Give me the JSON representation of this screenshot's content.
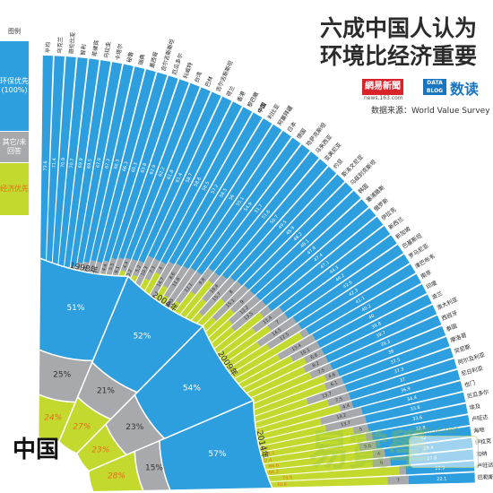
{
  "title_line1": "六成中国人认为",
  "title_line2": "环境比经济重要",
  "brand": {
    "netease": "網易新聞",
    "netease_sub": "news.163.com",
    "datablog": "DATA BLOG",
    "read": "数读"
  },
  "source": "数据来源：World Value Survey",
  "legend": {
    "header": "图例",
    "env": "环保优先(100%)",
    "other": "其它/未回答",
    "econ": "经济优先"
  },
  "colors": {
    "env": "#2d9ede",
    "other": "#a7a9ac",
    "econ": "#c4d92e",
    "econ_text": "#e36f1e",
    "ink": "#2b2b2b"
  },
  "china_label": "中国",
  "watermark": {
    "text": "易賞學",
    "url": "jiaoxue.net"
  },
  "chart_data": [
    {
      "type": "bar",
      "orientation": "radial fan, stacked percentage",
      "stack_order": [
        "环保优先",
        "其它/未回答",
        "经济优先"
      ],
      "categories": [
        "平均",
        "乌克兰",
        "哥伦比亚",
        "智利",
        "菲律宾",
        "乌拉圭",
        "卡塔尔",
        "秘鲁",
        "瑞典",
        "墨西哥",
        "吉尔吉斯斯坦",
        "厄瓜多尔",
        "科威特",
        "台湾",
        "巴林",
        "吉尔吉斯斯坦",
        "荷兰",
        "香港",
        "黎巴嫩",
        "中国",
        "利比亚",
        "阿塞拜疆",
        "日本",
        "德国",
        "哈萨克斯坦",
        "马来西亚",
        "亚美尼亚",
        "约旦",
        "斯洛文尼亚",
        "乌兹别克斯坦",
        "韩国",
        "塞浦路斯",
        "俄罗斯",
        "伊拉克",
        "新西兰",
        "新加坡",
        "巴基斯坦",
        "罗马尼亚",
        "津巴布韦",
        "南非",
        "印度",
        "波兰",
        "澳大利亚",
        "西班牙",
        "泰国",
        "摩洛哥",
        "突尼斯",
        "阿尔及利亚",
        "尼日利亚",
        "也门",
        "厄瓜多尔",
        "埃及",
        "卢旺达",
        "海地",
        "伊拉克",
        "加纳",
        "卢旺达",
        "巴勒斯坦"
      ],
      "values_env": [
        73.6,
        71.4,
        70.9,
        70.7,
        69.9,
        69.5,
        67.9,
        67.3,
        66.3,
        66.3,
        65.3,
        63.8,
        62.9,
        62.2,
        61.8,
        61.4,
        58.7,
        58.6,
        58.5,
        57.2,
        56.5,
        56.0,
        55.1,
        54.9,
        51.7,
        51.6,
        50.7,
        49.5,
        48.9,
        48.2,
        48.1,
        47.8,
        47.4,
        47.1,
        44.3,
        44.2,
        42.6,
        42.3,
        41.1,
        40.2,
        40.0,
        39.8,
        39.7,
        39.3,
        38.0,
        37.5,
        37.3,
        37.0,
        36.9,
        34.4,
        33.8,
        33.6,
        32.8,
        32.0,
        29.4,
        27.8,
        22.9,
        22.1
      ],
      "values_other": [
        5.0,
        4.4,
        2.1,
        5.7,
        3.6,
        2.5,
        9.5,
        5.1,
        18.1,
        8.0,
        4.4,
        5.5,
        8.1,
        4.4,
        10.2,
        5.2,
        10.3,
        7.3,
        4.0,
        14.7,
        8.6,
        11.6,
        27.5,
        12.1,
        9.8,
        3.4,
        10.4,
        15.7,
        8.0,
        15.1,
        9.0,
        12.2,
        13.5,
        3.4,
        11.4,
        7.0,
        14.5,
        12.5,
        2.4,
        13.4,
        10.1,
        6.6,
        8.2,
        7.5,
        4.6,
        6.1,
        13.7,
        7.5,
        4.4,
        14.2,
        13.7,
        5.0,
        2.1,
        5.6,
        4.0,
        6.0,
        2.2,
        7.0
      ],
      "values_econ": [
        21.4,
        24.2,
        27.0,
        23.6,
        26.5,
        28.0,
        22.6,
        27.6,
        15.6,
        25.7,
        30.3,
        30.7,
        29.0,
        33.4,
        28.0,
        33.4,
        31.0,
        34.1,
        37.5,
        28.1,
        34.9,
        32.4,
        17.4,
        33.0,
        38.5,
        45.0,
        38.9,
        34.8,
        43.1,
        36.7,
        42.9,
        40.0,
        39.1,
        49.5,
        44.3,
        48.8,
        42.9,
        45.2,
        56.5,
        46.4,
        49.9,
        53.6,
        52.1,
        53.2,
        57.4,
        56.4,
        49.0,
        55.5,
        58.7,
        51.4,
        52.5,
        61.4,
        65.1,
        62.4,
        66.6,
        66.2,
        74.9,
        70.9
      ],
      "ylim": [
        0,
        100
      ]
    },
    {
      "type": "bar",
      "title": "中国",
      "orientation": "radial fan, stacked percentage",
      "categories": [
        "1998年",
        "2004年",
        "2009年",
        "2014年"
      ],
      "series": [
        {
          "name": "环保优先",
          "values": [
            51,
            52,
            54,
            57
          ]
        },
        {
          "name": "其它/未回答",
          "values": [
            25,
            21,
            23,
            15
          ]
        },
        {
          "name": "经济优先",
          "values": [
            24,
            27,
            23,
            28
          ]
        }
      ],
      "ylim": [
        0,
        100
      ]
    }
  ]
}
